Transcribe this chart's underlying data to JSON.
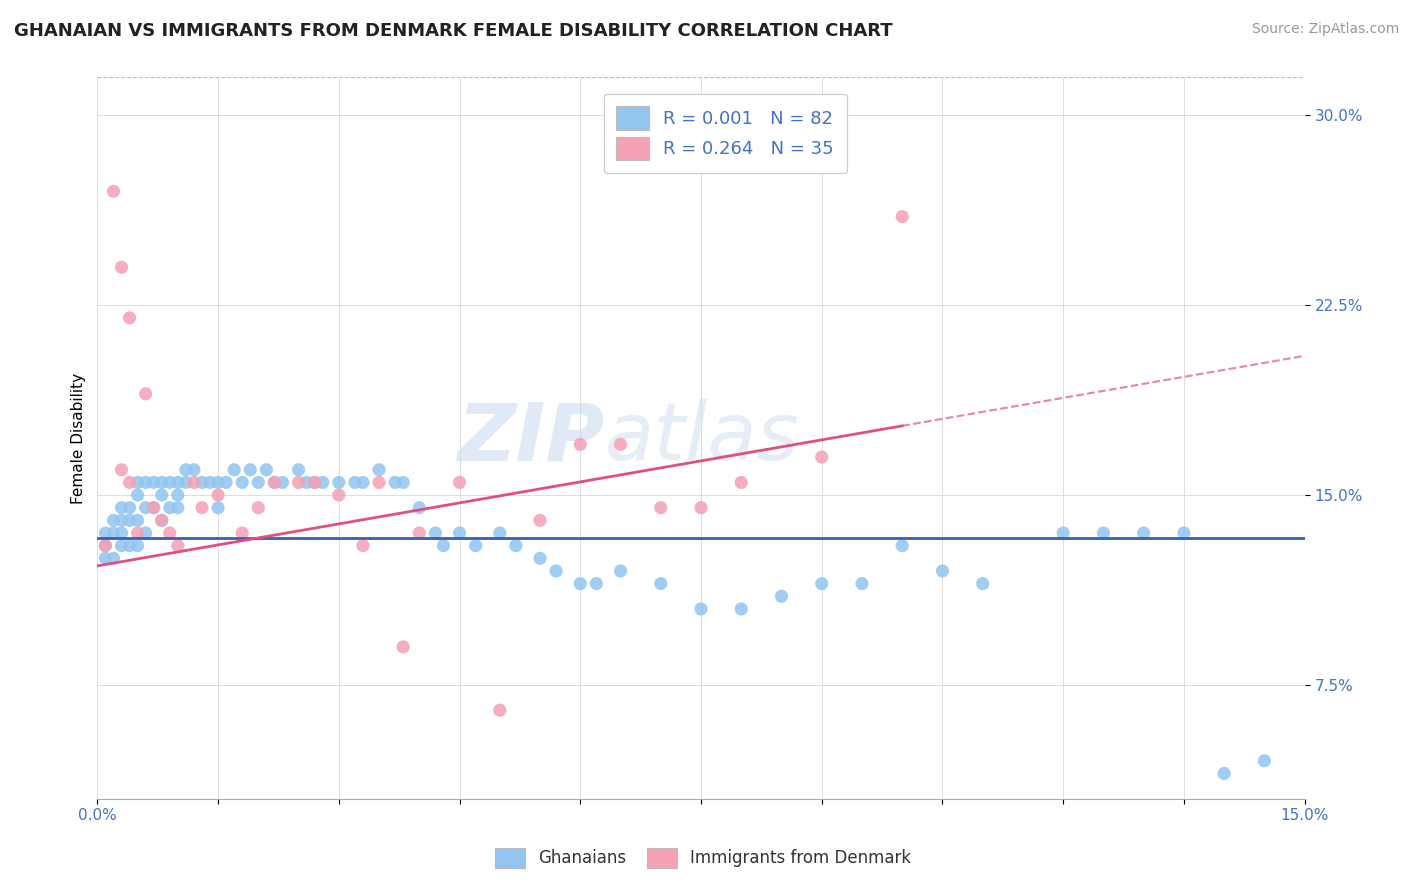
{
  "title": "GHANAIAN VS IMMIGRANTS FROM DENMARK FEMALE DISABILITY CORRELATION CHART",
  "source": "Source: ZipAtlas.com",
  "ylabel": "Female Disability",
  "yticks": [
    0.075,
    0.15,
    0.225,
    0.3
  ],
  "ytick_labels": [
    "7.5%",
    "15.0%",
    "22.5%",
    "30.0%"
  ],
  "xmin": 0.0,
  "xmax": 0.15,
  "ymin": 0.03,
  "ymax": 0.315,
  "color_blue": "#92C5F0",
  "color_pink": "#F4A0B5",
  "trendline_blue": "#3A5FB0",
  "trendline_pink": "#E0507A",
  "watermark_color": "#C8D8EE",
  "legend_label1": "Ghanaians",
  "legend_label2": "Immigrants from Denmark",
  "ghanaian_x": [
    0.001,
    0.001,
    0.001,
    0.002,
    0.002,
    0.002,
    0.003,
    0.003,
    0.003,
    0.003,
    0.004,
    0.004,
    0.004,
    0.005,
    0.005,
    0.005,
    0.005,
    0.006,
    0.006,
    0.006,
    0.007,
    0.007,
    0.008,
    0.008,
    0.008,
    0.009,
    0.009,
    0.01,
    0.01,
    0.01,
    0.011,
    0.011,
    0.012,
    0.013,
    0.014,
    0.015,
    0.015,
    0.016,
    0.017,
    0.018,
    0.019,
    0.02,
    0.021,
    0.022,
    0.023,
    0.025,
    0.026,
    0.027,
    0.028,
    0.03,
    0.032,
    0.033,
    0.035,
    0.037,
    0.038,
    0.04,
    0.042,
    0.043,
    0.045,
    0.047,
    0.05,
    0.052,
    0.055,
    0.057,
    0.06,
    0.062,
    0.065,
    0.07,
    0.075,
    0.08,
    0.085,
    0.09,
    0.095,
    0.1,
    0.105,
    0.11,
    0.12,
    0.125,
    0.13,
    0.135,
    0.14,
    0.145
  ],
  "ghanaian_y": [
    0.135,
    0.13,
    0.125,
    0.14,
    0.135,
    0.125,
    0.145,
    0.14,
    0.135,
    0.13,
    0.145,
    0.14,
    0.13,
    0.155,
    0.15,
    0.14,
    0.13,
    0.155,
    0.145,
    0.135,
    0.155,
    0.145,
    0.155,
    0.15,
    0.14,
    0.155,
    0.145,
    0.155,
    0.15,
    0.145,
    0.16,
    0.155,
    0.16,
    0.155,
    0.155,
    0.155,
    0.145,
    0.155,
    0.16,
    0.155,
    0.16,
    0.155,
    0.16,
    0.155,
    0.155,
    0.16,
    0.155,
    0.155,
    0.155,
    0.155,
    0.155,
    0.155,
    0.16,
    0.155,
    0.155,
    0.145,
    0.135,
    0.13,
    0.135,
    0.13,
    0.135,
    0.13,
    0.125,
    0.12,
    0.115,
    0.115,
    0.12,
    0.115,
    0.105,
    0.105,
    0.11,
    0.115,
    0.115,
    0.13,
    0.12,
    0.115,
    0.135,
    0.135,
    0.135,
    0.135,
    0.04,
    0.045
  ],
  "denmark_x": [
    0.001,
    0.002,
    0.003,
    0.003,
    0.004,
    0.004,
    0.005,
    0.006,
    0.007,
    0.008,
    0.009,
    0.01,
    0.012,
    0.013,
    0.015,
    0.018,
    0.02,
    0.022,
    0.025,
    0.027,
    0.03,
    0.033,
    0.035,
    0.038,
    0.04,
    0.045,
    0.05,
    0.055,
    0.06,
    0.065,
    0.07,
    0.075,
    0.08,
    0.09,
    0.1
  ],
  "denmark_y": [
    0.13,
    0.27,
    0.16,
    0.24,
    0.155,
    0.22,
    0.135,
    0.19,
    0.145,
    0.14,
    0.135,
    0.13,
    0.155,
    0.145,
    0.15,
    0.135,
    0.145,
    0.155,
    0.155,
    0.155,
    0.15,
    0.13,
    0.155,
    0.09,
    0.135,
    0.155,
    0.065,
    0.14,
    0.17,
    0.17,
    0.145,
    0.145,
    0.155,
    0.165,
    0.26
  ],
  "blue_trendline_y0": 0.133,
  "blue_trendline_y1": 0.133,
  "pink_trendline_y0": 0.122,
  "pink_trendline_y1": 0.205
}
